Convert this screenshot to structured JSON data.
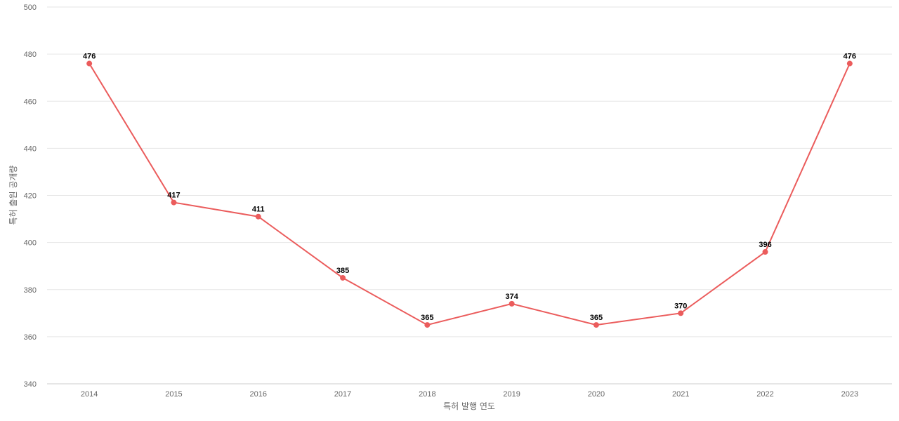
{
  "colors": {
    "series": "#eb5c5c",
    "grid": "#e6e6e6",
    "axis_text": "#666666",
    "data_label": "#000000"
  },
  "chart_data": {
    "type": "line",
    "title": "",
    "xlabel": "특허 발행 연도",
    "ylabel": "특허 출원 공개량",
    "categories": [
      "2014",
      "2015",
      "2016",
      "2017",
      "2018",
      "2019",
      "2020",
      "2021",
      "2022",
      "2023"
    ],
    "series": [
      {
        "values": [
          476,
          417,
          411,
          385,
          365,
          374,
          365,
          370,
          396,
          476
        ]
      }
    ],
    "ylim": [
      340,
      500
    ],
    "yticks": [
      340,
      360,
      380,
      400,
      420,
      440,
      460,
      480,
      500
    ],
    "grid": true,
    "legend": "none",
    "data_labels": true
  }
}
